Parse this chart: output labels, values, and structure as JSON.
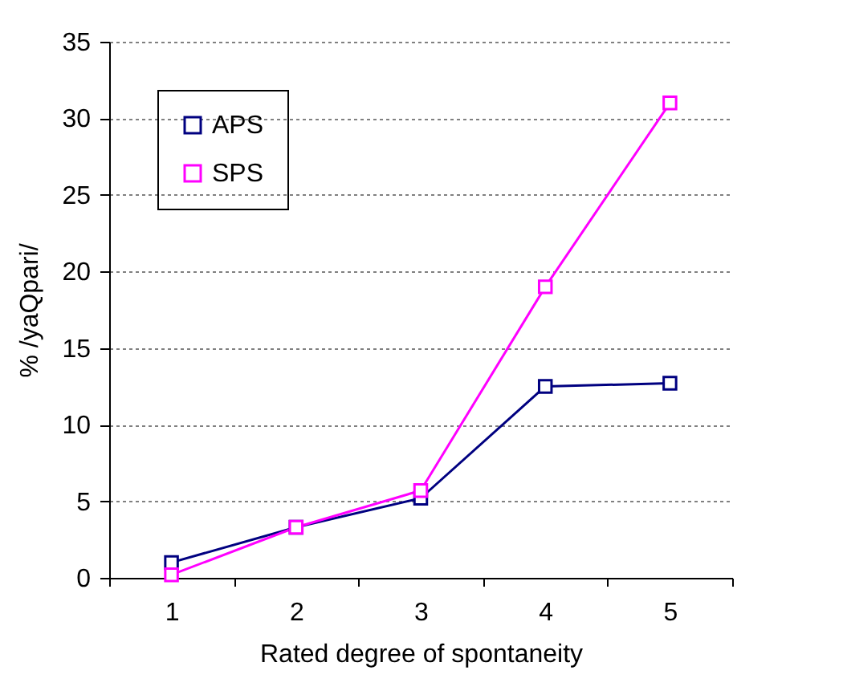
{
  "chart_data": {
    "type": "line",
    "xlabel": "Rated degree of spontaneity",
    "ylabel": "% /yaQpari/",
    "categories": [
      "1",
      "2",
      "3",
      "4",
      "5"
    ],
    "series": [
      {
        "name": "APS",
        "color": "#000080",
        "values": [
          1.0,
          3.3,
          5.2,
          12.5,
          12.7
        ]
      },
      {
        "name": "SPS",
        "color": "#ff00ff",
        "values": [
          0.2,
          3.3,
          5.7,
          19.0,
          31.0
        ]
      }
    ],
    "ylim": [
      0,
      35
    ],
    "yticks": [
      0,
      5,
      10,
      15,
      20,
      25,
      30,
      35
    ],
    "grid": "y",
    "legend": "top left",
    "marker": "square",
    "line_style": "solid"
  }
}
